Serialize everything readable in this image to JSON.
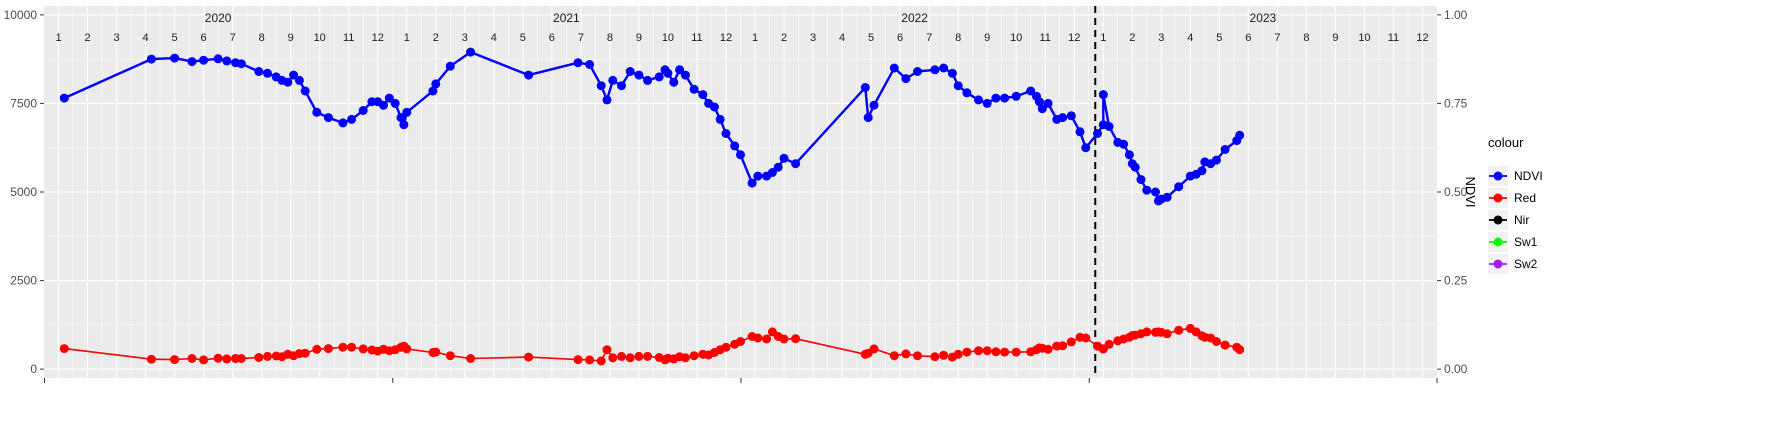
{
  "chart_data": {
    "type": "line",
    "y_left": {
      "ticks": [
        0,
        2500,
        5000,
        7500,
        10000
      ],
      "range": [
        -250,
        10250
      ]
    },
    "y_right": {
      "label": "NDVI",
      "ticks": [
        "0.00",
        "0.25",
        "0.50",
        "0.75",
        "1.00"
      ]
    },
    "x_range": [
      0.5,
      48.5
    ],
    "years": [
      {
        "label": "2020",
        "start": 1
      },
      {
        "label": "2021",
        "start": 13
      },
      {
        "label": "2022",
        "start": 25
      },
      {
        "label": "2023",
        "start": 37
      }
    ],
    "months": [
      "1",
      "2",
      "3",
      "4",
      "5",
      "6",
      "7",
      "8",
      "9",
      "10",
      "11",
      "12"
    ],
    "divider_at": 37,
    "legend": {
      "title": "colour",
      "entries": [
        {
          "name": "NDVI",
          "color": "#0000ff"
        },
        {
          "name": "Red",
          "color": "#ff0000"
        },
        {
          "name": "Nir",
          "color": "#000000"
        },
        {
          "name": "Sw1",
          "color": "#00ff00"
        },
        {
          "name": "Sw2",
          "color": "#a020f0"
        }
      ]
    },
    "series": [
      {
        "name": "NDVI",
        "color": "#0000ff",
        "stroke_width": 2.4,
        "point_radius": 4.5,
        "points": [
          [
            1.2,
            7650
          ],
          [
            4.2,
            8750
          ],
          [
            5.0,
            8780
          ],
          [
            5.6,
            8680
          ],
          [
            6.0,
            8720
          ],
          [
            6.5,
            8760
          ],
          [
            6.8,
            8700
          ],
          [
            7.1,
            8650
          ],
          [
            7.3,
            8620
          ],
          [
            7.9,
            8400
          ],
          [
            8.2,
            8350
          ],
          [
            8.5,
            8250
          ],
          [
            8.7,
            8150
          ],
          [
            8.9,
            8100
          ],
          [
            9.1,
            8300
          ],
          [
            9.3,
            8150
          ],
          [
            9.5,
            7850
          ],
          [
            9.9,
            7250
          ],
          [
            10.3,
            7100
          ],
          [
            10.8,
            6950
          ],
          [
            11.1,
            7050
          ],
          [
            11.5,
            7300
          ],
          [
            11.8,
            7550
          ],
          [
            12.0,
            7550
          ],
          [
            12.2,
            7450
          ],
          [
            12.4,
            7650
          ],
          [
            12.6,
            7500
          ],
          [
            12.8,
            7100
          ],
          [
            12.9,
            6900
          ],
          [
            13.0,
            7250
          ],
          [
            13.9,
            7850
          ],
          [
            14.0,
            8050
          ],
          [
            14.5,
            8550
          ],
          [
            15.2,
            8950
          ],
          [
            17.2,
            8300
          ],
          [
            18.9,
            8650
          ],
          [
            19.3,
            8600
          ],
          [
            19.7,
            8000
          ],
          [
            19.9,
            7600
          ],
          [
            20.1,
            8150
          ],
          [
            20.4,
            8000
          ],
          [
            20.7,
            8400
          ],
          [
            21.0,
            8300
          ],
          [
            21.3,
            8150
          ],
          [
            21.7,
            8250
          ],
          [
            21.9,
            8450
          ],
          [
            22.0,
            8350
          ],
          [
            22.2,
            8100
          ],
          [
            22.4,
            8450
          ],
          [
            22.6,
            8300
          ],
          [
            22.9,
            7900
          ],
          [
            23.2,
            7750
          ],
          [
            23.4,
            7500
          ],
          [
            23.6,
            7400
          ],
          [
            23.8,
            7050
          ],
          [
            24.0,
            6650
          ],
          [
            24.3,
            6300
          ],
          [
            24.5,
            6050
          ],
          [
            24.9,
            5250
          ],
          [
            25.1,
            5450
          ],
          [
            25.4,
            5450
          ],
          [
            25.6,
            5550
          ],
          [
            25.8,
            5700
          ],
          [
            26.0,
            5950
          ],
          [
            26.4,
            5800
          ],
          [
            28.8,
            7950
          ],
          [
            28.9,
            7100
          ],
          [
            29.1,
            7450
          ],
          [
            29.8,
            8500
          ],
          [
            30.2,
            8200
          ],
          [
            30.6,
            8400
          ],
          [
            31.2,
            8450
          ],
          [
            31.5,
            8500
          ],
          [
            31.8,
            8350
          ],
          [
            32.0,
            8000
          ],
          [
            32.3,
            7800
          ],
          [
            32.7,
            7600
          ],
          [
            33.0,
            7500
          ],
          [
            33.3,
            7650
          ],
          [
            33.6,
            7650
          ],
          [
            34.0,
            7700
          ],
          [
            34.5,
            7850
          ],
          [
            34.7,
            7700
          ],
          [
            34.8,
            7550
          ],
          [
            34.9,
            7350
          ],
          [
            35.1,
            7500
          ],
          [
            35.4,
            7050
          ],
          [
            35.6,
            7100
          ],
          [
            35.9,
            7150
          ],
          [
            36.2,
            6700
          ],
          [
            36.4,
            6250
          ],
          [
            36.8,
            6650
          ],
          [
            37.0,
            6900
          ],
          [
            37.2,
            6850
          ],
          [
            37.5,
            6400
          ],
          [
            37.7,
            6350
          ],
          [
            37.9,
            6050
          ],
          [
            38.0,
            5800
          ],
          [
            38.1,
            5700
          ],
          [
            38.3,
            5350
          ],
          [
            38.5,
            5050
          ],
          [
            38.8,
            5000
          ],
          [
            38.9,
            4750
          ],
          [
            39.0,
            4800
          ],
          [
            39.2,
            4850
          ],
          [
            39.6,
            5150
          ],
          [
            40.0,
            5450
          ],
          [
            40.2,
            5500
          ],
          [
            40.4,
            5600
          ],
          [
            40.5,
            5850
          ],
          [
            40.7,
            5800
          ],
          [
            40.9,
            5900
          ],
          [
            41.2,
            6200
          ],
          [
            41.6,
            6450
          ],
          [
            41.7,
            6600
          ],
          [
            37.0,
            7750
          ]
        ],
        "order_note": ""
      },
      {
        "name": "Red",
        "color": "#ff0000",
        "stroke_width": 1.6,
        "point_radius": 4.5,
        "points": [
          [
            1.2,
            580
          ],
          [
            4.2,
            280
          ],
          [
            5.0,
            270
          ],
          [
            5.6,
            300
          ],
          [
            6.0,
            260
          ],
          [
            6.5,
            310
          ],
          [
            6.8,
            290
          ],
          [
            7.1,
            300
          ],
          [
            7.3,
            300
          ],
          [
            7.9,
            330
          ],
          [
            8.2,
            360
          ],
          [
            8.5,
            370
          ],
          [
            8.7,
            350
          ],
          [
            8.9,
            420
          ],
          [
            9.1,
            380
          ],
          [
            9.3,
            440
          ],
          [
            9.5,
            450
          ],
          [
            9.9,
            560
          ],
          [
            10.3,
            580
          ],
          [
            10.8,
            620
          ],
          [
            11.1,
            620
          ],
          [
            11.5,
            570
          ],
          [
            11.8,
            540
          ],
          [
            12.0,
            510
          ],
          [
            12.2,
            560
          ],
          [
            12.4,
            520
          ],
          [
            12.6,
            550
          ],
          [
            12.8,
            620
          ],
          [
            12.9,
            650
          ],
          [
            13.0,
            570
          ],
          [
            13.9,
            470
          ],
          [
            14.0,
            480
          ],
          [
            14.5,
            380
          ],
          [
            15.2,
            300
          ],
          [
            17.2,
            340
          ],
          [
            18.9,
            270
          ],
          [
            19.3,
            260
          ],
          [
            19.7,
            230
          ],
          [
            19.9,
            550
          ],
          [
            20.1,
            320
          ],
          [
            20.4,
            360
          ],
          [
            20.7,
            320
          ],
          [
            21.0,
            360
          ],
          [
            21.3,
            360
          ],
          [
            21.7,
            330
          ],
          [
            21.9,
            260
          ],
          [
            22.0,
            310
          ],
          [
            22.2,
            290
          ],
          [
            22.4,
            350
          ],
          [
            22.6,
            320
          ],
          [
            22.9,
            380
          ],
          [
            23.2,
            420
          ],
          [
            23.4,
            400
          ],
          [
            23.6,
            470
          ],
          [
            23.8,
            550
          ],
          [
            24.0,
            620
          ],
          [
            24.3,
            700
          ],
          [
            24.5,
            780
          ],
          [
            24.9,
            920
          ],
          [
            25.1,
            880
          ],
          [
            25.4,
            850
          ],
          [
            25.6,
            1050
          ],
          [
            25.8,
            920
          ],
          [
            26.0,
            850
          ],
          [
            26.4,
            860
          ],
          [
            28.8,
            420
          ],
          [
            28.9,
            450
          ],
          [
            29.1,
            570
          ],
          [
            29.8,
            380
          ],
          [
            30.2,
            430
          ],
          [
            30.6,
            380
          ],
          [
            31.2,
            350
          ],
          [
            31.5,
            390
          ],
          [
            31.8,
            340
          ],
          [
            32.0,
            420
          ],
          [
            32.3,
            480
          ],
          [
            32.7,
            520
          ],
          [
            33.0,
            520
          ],
          [
            33.3,
            490
          ],
          [
            33.6,
            480
          ],
          [
            34.0,
            480
          ],
          [
            34.5,
            490
          ],
          [
            34.7,
            550
          ],
          [
            34.8,
            600
          ],
          [
            34.9,
            590
          ],
          [
            35.1,
            560
          ],
          [
            35.4,
            650
          ],
          [
            35.6,
            660
          ],
          [
            35.9,
            770
          ],
          [
            36.2,
            900
          ],
          [
            36.4,
            880
          ],
          [
            36.8,
            650
          ],
          [
            37.0,
            570
          ],
          [
            37.2,
            700
          ],
          [
            37.5,
            800
          ],
          [
            37.7,
            850
          ],
          [
            37.9,
            900
          ],
          [
            38.0,
            950
          ],
          [
            38.1,
            960
          ],
          [
            38.3,
            1000
          ],
          [
            38.5,
            1050
          ],
          [
            38.8,
            1040
          ],
          [
            38.9,
            1050
          ],
          [
            39.0,
            1040
          ],
          [
            39.2,
            1000
          ],
          [
            39.6,
            1100
          ],
          [
            40.0,
            1150
          ],
          [
            40.2,
            1050
          ],
          [
            40.4,
            940
          ],
          [
            40.5,
            900
          ],
          [
            40.7,
            880
          ],
          [
            40.9,
            780
          ],
          [
            41.2,
            680
          ],
          [
            41.6,
            620
          ],
          [
            41.7,
            550
          ],
          [
            37.0,
            570
          ]
        ]
      }
    ]
  }
}
